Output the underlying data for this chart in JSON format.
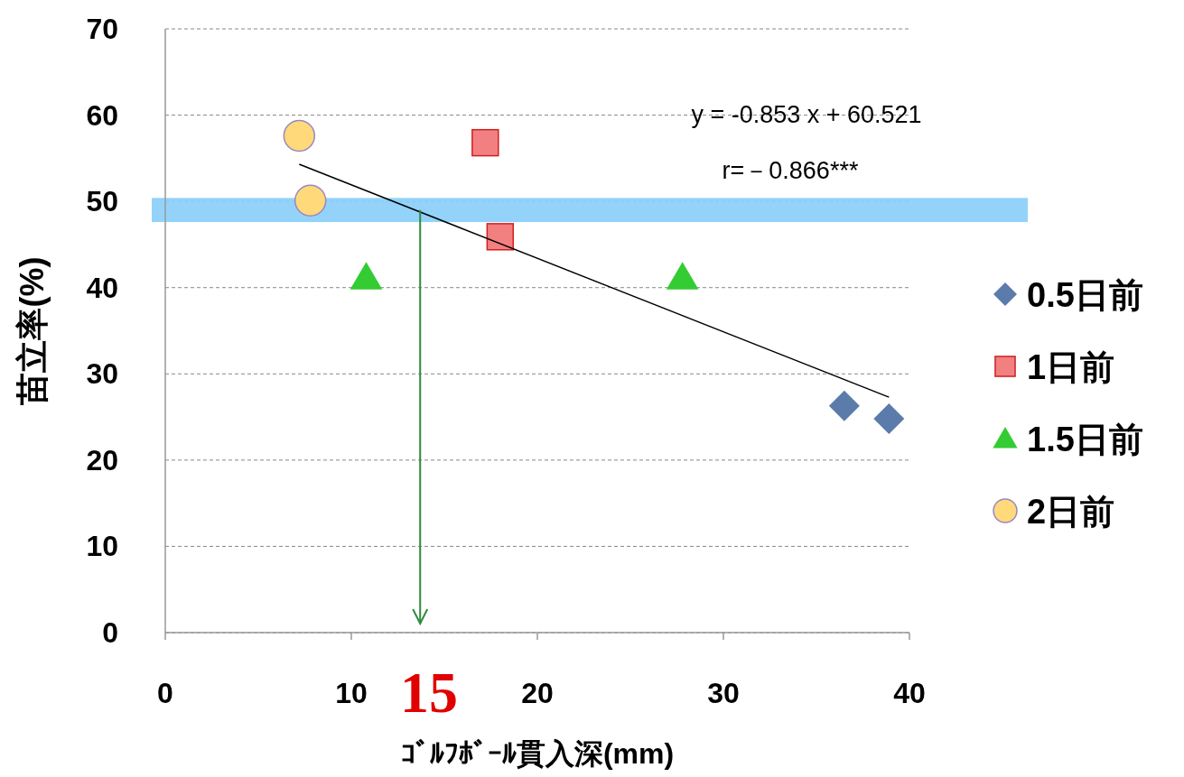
{
  "chart_data": {
    "type": "scatter",
    "xlabel": "ｺﾞﾙﾌﾎﾞｰﾙ貫入深(mm)",
    "ylabel": "苗立率(%)",
    "xlim": [
      0,
      40
    ],
    "xticks": [
      0,
      10,
      20,
      30,
      40
    ],
    "ylim": [
      0,
      70
    ],
    "yticks": [
      0,
      10,
      20,
      30,
      40,
      50,
      60,
      70
    ],
    "grid": "y",
    "legend": "right",
    "series": [
      {
        "name": "0.5日前",
        "color": "#5b7bab",
        "marker": "diamond",
        "x": [
          36.5,
          38.9
        ],
        "values": [
          26.3,
          24.8
        ]
      },
      {
        "name": "1日前",
        "color": "#f28080",
        "marker": "square",
        "x": [
          17.2,
          18.0
        ],
        "values": [
          56.8,
          45.9
        ]
      },
      {
        "name": "1.5日前",
        "color": "#33cc33",
        "marker": "triangle",
        "x": [
          10.8,
          27.8
        ],
        "values": [
          41.2,
          41.2
        ]
      },
      {
        "name": "2日前",
        "color": "#ffd97a",
        "marker": "circle",
        "x": [
          7.2,
          7.8
        ],
        "values": [
          57.6,
          50.1
        ]
      },
      {
        "type": "line",
        "color": "#000000",
        "x": [
          7.2,
          38.9
        ],
        "values": [
          54.3,
          27.3
        ]
      }
    ],
    "bands": [
      {
        "axis": "y",
        "from": 47.6,
        "to": 50.4,
        "color": "#87cefa"
      }
    ],
    "ref_lines": [
      {
        "axis": "x",
        "value": 13.7,
        "color": "#2e8b3e"
      }
    ],
    "annotations": [
      "y = -0.853 x + 60.521",
      "r=－0.866***",
      "15"
    ]
  }
}
